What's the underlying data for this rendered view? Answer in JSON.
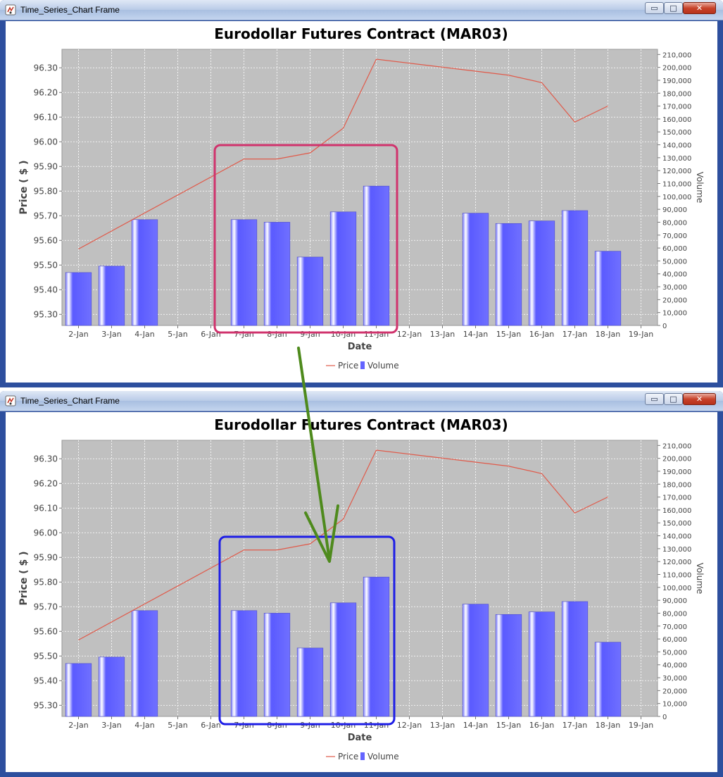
{
  "windows": [
    {
      "title": "Time_Series_Chart Frame",
      "highlight_color": "#d0336d"
    },
    {
      "title": "Time_Series_Chart Frame",
      "highlight_color": "#1e1ee6"
    }
  ],
  "window_buttons": {
    "minimize": "▭",
    "maximize": "□",
    "close": "✕"
  },
  "annotation": {
    "arrow_color": "#4e8a1c"
  },
  "chart_data": {
    "type": "bar",
    "title": "Eurodollar Futures Contract (MAR03)",
    "xlabel": "Date",
    "ylabel_left": "Price ( $ )",
    "ylabel_right": "Volume",
    "x_ticks": [
      "2-Jan",
      "3-Jan",
      "4-Jan",
      "5-Jan",
      "6-Jan",
      "7-Jan",
      "8-Jan",
      "9-Jan",
      "10-Jan",
      "11-Jan",
      "12-Jan",
      "13-Jan",
      "14-Jan",
      "15-Jan",
      "16-Jan",
      "17-Jan",
      "18-Jan",
      "19-Jan"
    ],
    "left_ticks": [
      "95.30",
      "95.40",
      "95.50",
      "95.60",
      "95.70",
      "95.80",
      "95.90",
      "96.00",
      "96.10",
      "96.20",
      "96.30"
    ],
    "right_ticks": [
      "0",
      "10,000",
      "20,000",
      "30,000",
      "40,000",
      "50,000",
      "60,000",
      "70,000",
      "80,000",
      "90,000",
      "100,000",
      "110,000",
      "120,000",
      "130,000",
      "140,000",
      "150,000",
      "160,000",
      "170,000",
      "180,000",
      "190,000",
      "200,000",
      "210,000"
    ],
    "ylim_left": [
      95.255,
      96.375
    ],
    "ylim_right": [
      0,
      214000
    ],
    "grid": true,
    "legend_position": "bottom",
    "colors": {
      "price": "#e05a4a",
      "volume": "#6464ff",
      "plot_bg": "#c0c0c0"
    },
    "series": [
      {
        "name": "Price",
        "kind": "line",
        "x": [
          "2-Jan",
          "7-Jan",
          "8-Jan",
          "9-Jan",
          "10-Jan",
          "11-Jan",
          "15-Jan",
          "16-Jan",
          "17-Jan",
          "18-Jan"
        ],
        "values": [
          95.565,
          95.93,
          95.93,
          95.955,
          96.055,
          96.335,
          96.27,
          96.24,
          96.08,
          96.145
        ]
      },
      {
        "name": "Volume",
        "kind": "bar",
        "x": [
          "2-Jan",
          "3-Jan",
          "4-Jan",
          "7-Jan",
          "8-Jan",
          "9-Jan",
          "10-Jan",
          "11-Jan",
          "14-Jan",
          "15-Jan",
          "16-Jan",
          "17-Jan",
          "18-Jan"
        ],
        "values": [
          41000,
          46000,
          82000,
          82000,
          80000,
          53000,
          88000,
          108000,
          87000,
          79000,
          81000,
          89000,
          57500
        ]
      }
    ]
  }
}
